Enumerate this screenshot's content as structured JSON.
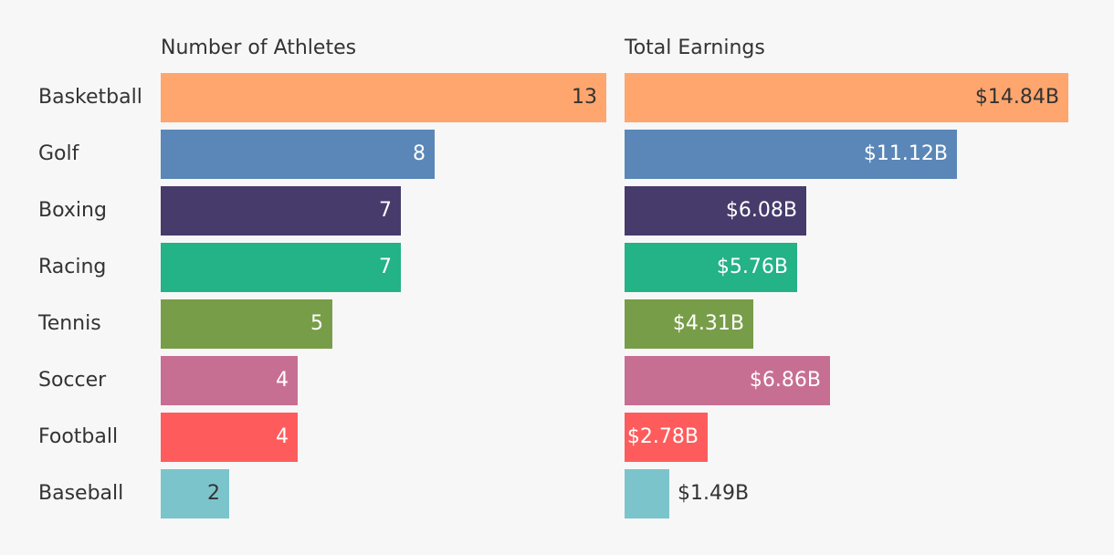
{
  "chart_data": {
    "type": "bar",
    "orientation": "horizontal",
    "categories": [
      "Basketball",
      "Golf",
      "Boxing",
      "Racing",
      "Tennis",
      "Soccer",
      "Football",
      "Baseball"
    ],
    "colors": [
      "#ffa56e",
      "#5a87b7",
      "#463b6b",
      "#24b287",
      "#789d48",
      "#c76f92",
      "#fe5c5c",
      "#7bc4cc"
    ],
    "label_colors": [
      "#333333",
      "#ffffff",
      "#ffffff",
      "#ffffff",
      "#ffffff",
      "#ffffff",
      "#ffffff",
      "#333333"
    ],
    "panels": [
      {
        "title": "Number of Athletes",
        "values": [
          13,
          8,
          7,
          7,
          5,
          4,
          4,
          2
        ],
        "labels": [
          "13",
          "8",
          "7",
          "7",
          "5",
          "4",
          "4",
          "2"
        ],
        "xlim": [
          0,
          13
        ]
      },
      {
        "title": "Total Earnings",
        "values": [
          14.84,
          11.12,
          6.08,
          5.76,
          4.31,
          6.86,
          2.78,
          1.49
        ],
        "labels": [
          "$14.84B",
          "$11.12B",
          "$6.08B",
          "$5.76B",
          "$4.31B",
          "$6.86B",
          "$2.78B",
          "$1.49B"
        ],
        "xlim": [
          0,
          14.84
        ]
      }
    ]
  }
}
